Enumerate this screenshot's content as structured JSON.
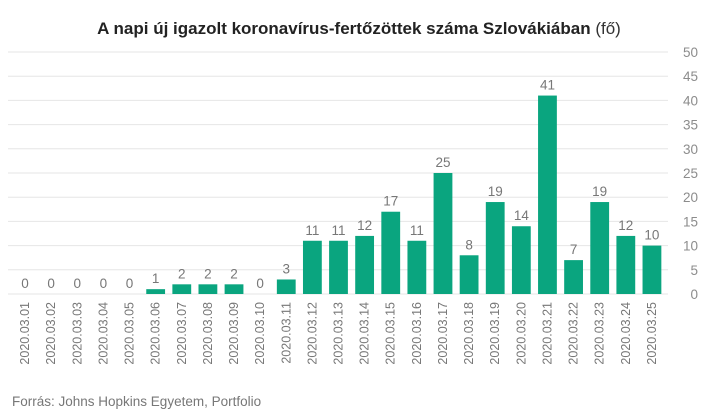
{
  "title": {
    "main": "A napi új igazolt koronavírus-fertőzöttek száma Szlovákiában",
    "unit": "(fő)"
  },
  "source": "Forrás: Johns Hopkins Egyetem, Portfolio",
  "colors": {
    "bar": "#0aa57f",
    "grid": "#e6e6e6",
    "axis_text": "#8c8c8c"
  },
  "chart_data": {
    "type": "bar",
    "title": "A napi új igazolt koronavírus-fertőzöttek száma Szlovákiában (fő)",
    "categories": [
      "2020.03.01",
      "2020.03.02",
      "2020.03.03",
      "2020.03.04",
      "2020.03.05",
      "2020.03.06",
      "2020.03.07",
      "2020.03.08",
      "2020.03.09",
      "2020.03.10",
      "2020.03.11",
      "2020.03.12",
      "2020.03.13",
      "2020.03.14",
      "2020.03.15",
      "2020.03.16",
      "2020.03.17",
      "2020.03.18",
      "2020.03.19",
      "2020.03.20",
      "2020.03.21",
      "2020.03.22",
      "2020.03.23",
      "2020.03.24",
      "2020.03.25"
    ],
    "values": [
      0,
      0,
      0,
      0,
      0,
      1,
      2,
      2,
      2,
      0,
      3,
      11,
      11,
      12,
      17,
      11,
      25,
      8,
      19,
      14,
      41,
      7,
      19,
      12,
      10
    ],
    "ylim": [
      0,
      50
    ],
    "yticks": [
      0,
      5,
      10,
      15,
      20,
      25,
      30,
      35,
      40,
      45,
      50
    ],
    "y_axis_side": "right",
    "grid": true,
    "data_labels": true
  }
}
